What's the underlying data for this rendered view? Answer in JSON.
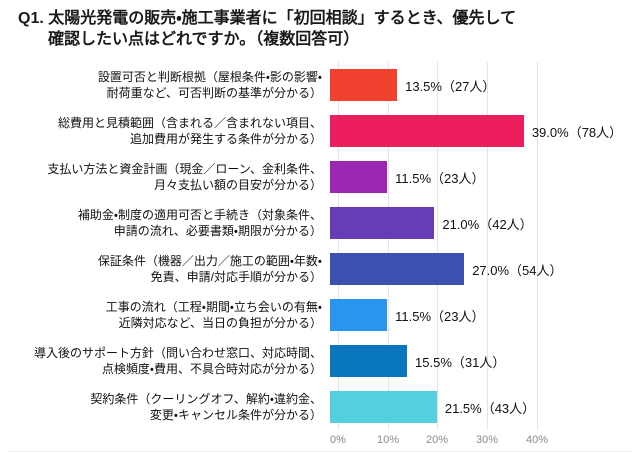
{
  "title": {
    "line1": "Q1. 太陽光発電の販売・施工事業者に「初回相談」するとき、優先して",
    "line2": "確認したい点はどれですか。（複数回答可）"
  },
  "axis": {
    "ticks": [
      "0%",
      "10%",
      "20%",
      "30%",
      "40%"
    ]
  },
  "chart": {
    "rows": [
      {
        "label_line1": "設置可否と判断根拠（屋根条件・影の影響・",
        "label_line2": "耐荷重など、可否判断の基準が分かる）",
        "value_label": "13.5%（27人）"
      },
      {
        "label_line1": "総費用と見積範囲（含まれる／含まれない項目、",
        "label_line2": "追加費用が発生する条件が分かる）",
        "value_label": "39.0%（78人）"
      },
      {
        "label_line1": "支払い方法と資金計画（現金／ローン、金利条件、",
        "label_line2": "月々支払い額の目安が分かる）",
        "value_label": "11.5%（23人）"
      },
      {
        "label_line1": "補助金・制度の適用可否と手続き（対象条件、",
        "label_line2": "申請の流れ、必要書類・期限が分かる）",
        "value_label": "21.0%（42人）"
      },
      {
        "label_line1": "保証条件（機器／出力／施工の範囲・年数・",
        "label_line2": "免責、申請/対応手順が分かる）",
        "value_label": "27.0%（54人）"
      },
      {
        "label_line1": "工事の流れ（工程・期間・立ち会いの有無・",
        "label_line2": "近隣対応など、当日の負担が分かる）",
        "value_label": "11.5%（23人）"
      },
      {
        "label_line1": "導入後のサポート方針（問い合わせ窓口、対応時間、",
        "label_line2": "点検頻度・費用、不具合時対応が分かる）",
        "value_label": "15.5%（31人）"
      },
      {
        "label_line1": "契約条件（クーリングオフ、解約・違約金、",
        "label_line2": "変更・キャンセル条件が分かる）",
        "value_label": "21.5%（43人）"
      }
    ]
  },
  "chart_data": {
    "type": "bar",
    "orientation": "horizontal",
    "title": "Q1. 太陽光発電の販売・施工事業者に「初回相談」するとき、優先して確認したい点はどれですか。（複数回答可）",
    "categories": [
      "設置可否と判断根拠（屋根条件・影の影響・耐荷重など、可否判断の基準が分かる）",
      "総費用と見積範囲（含まれる／含まれない項目、追加費用が発生する条件が分かる）",
      "支払い方法と資金計画（現金／ローン、金利条件、月々支払い額の目安が分かる）",
      "補助金・制度の適用可否と手続き（対象条件、申請の流れ、必要書類・期限が分かる）",
      "保証条件（機器／出力／施工の範囲・年数・免責、申請/対応手順が分かる）",
      "工事の流れ（工程・期間・立ち会いの有無・近隣対応など、当日の負担が分かる）",
      "導入後のサポート方針（問い合わせ窓口、対応時間、点検頻度・費用、不具合時対応が分かる）",
      "契約条件（クーリングオフ、解約・違約金、変更・キャンセル条件が分かる）"
    ],
    "values": [
      13.5,
      39.0,
      11.5,
      21.0,
      27.0,
      11.5,
      15.5,
      21.5
    ],
    "counts": [
      27,
      78,
      23,
      42,
      54,
      23,
      31,
      43
    ],
    "colors": [
      "#F2412E",
      "#EC1E5E",
      "#9C27B0",
      "#673DB6",
      "#3F51B0",
      "#2A95EE",
      "#0B76C0",
      "#53CFE0"
    ],
    "xlabel": "",
    "ylabel": "",
    "tick_labels": [
      "0%",
      "10%",
      "20%",
      "30%",
      "40%"
    ],
    "xlim": [
      0,
      45
    ],
    "grid": true,
    "value_label_format": "{value}%（{count}人）"
  }
}
